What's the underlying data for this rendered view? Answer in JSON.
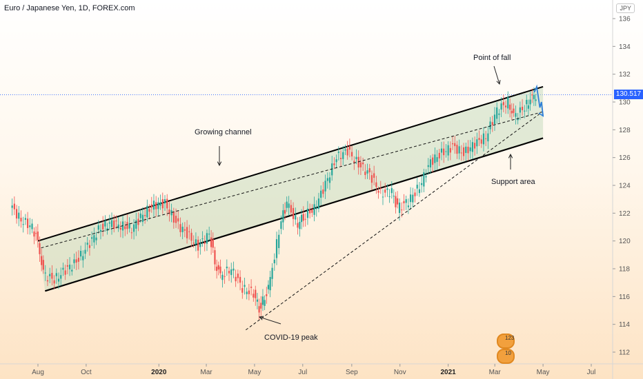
{
  "header": {
    "title": "Euro / Japanese Yen, 1D, FOREX.com",
    "currency": "JPY",
    "last_price": "130.517"
  },
  "annotations": {
    "growing_channel": "Growing channel",
    "point_of_fall": "Point of fall",
    "support_area": "Support area",
    "covid_peak": "COVID-19 peak"
  },
  "badges": {
    "top": "123",
    "bottom": "10"
  },
  "colors": {
    "up": "#26a69a",
    "down": "#ef5350",
    "channel_fill": "#c9dcc0",
    "forecast": "#2f7fd8",
    "price_line": "#2962ff"
  },
  "chart_data": {
    "type": "line",
    "title": "Euro / Japanese Yen, 1D, FOREX.com",
    "ylim": [
      111,
      137
    ],
    "y_ticks": [
      112,
      114,
      116,
      118,
      120,
      122,
      124,
      126,
      128,
      130,
      132,
      134,
      136
    ],
    "x_ticks": [
      "Aug",
      "Oct",
      "2020",
      "Mar",
      "May",
      "Jul",
      "Sep",
      "Nov",
      "2021",
      "Mar",
      "May",
      "Jul"
    ],
    "last_price": 130.517,
    "series": [
      {
        "name": "",
        "x": [
          "2019-06-28",
          "2019-07-12",
          "2019-07-26",
          "2019-08-02",
          "2019-08-09",
          "2019-08-23",
          "2019-09-06",
          "2019-09-20",
          "2019-10-04",
          "2019-10-18",
          "2019-11-01",
          "2019-11-15",
          "2019-11-29",
          "2019-12-13",
          "2019-12-27",
          "2020-01-10",
          "2020-01-24",
          "2020-02-07",
          "2020-02-21",
          "2020-03-06",
          "2020-03-13",
          "2020-03-20",
          "2020-04-03",
          "2020-04-17",
          "2020-05-01",
          "2020-05-08",
          "2020-05-15",
          "2020-05-22",
          "2020-06-05",
          "2020-06-12",
          "2020-06-26",
          "2020-07-03",
          "2020-07-17",
          "2020-07-31",
          "2020-08-14",
          "2020-08-28",
          "2020-09-11",
          "2020-09-25",
          "2020-10-09",
          "2020-10-23",
          "2020-10-30",
          "2020-11-13",
          "2020-11-27",
          "2020-12-11",
          "2020-12-25",
          "2021-01-08",
          "2021-01-22",
          "2021-02-05",
          "2021-02-19",
          "2021-03-05",
          "2021-03-19",
          "2021-03-26",
          "2021-04-09",
          "2021-04-16",
          "2021-04-23"
        ],
        "values": [
          122.6,
          121.5,
          121.0,
          120.0,
          117.6,
          117.2,
          117.9,
          118.5,
          119.6,
          120.8,
          121.3,
          121.1,
          120.9,
          121.9,
          122.6,
          122.7,
          121.3,
          120.5,
          119.6,
          120.5,
          118.5,
          117.5,
          118.0,
          116.6,
          116.2,
          115.2,
          115.9,
          117.2,
          121.5,
          122.7,
          121.2,
          121.8,
          122.3,
          124.1,
          126.0,
          126.5,
          125.5,
          124.8,
          123.4,
          123.6,
          122.3,
          122.9,
          123.9,
          125.7,
          126.3,
          126.8,
          126.3,
          127.0,
          127.5,
          129.4,
          130.0,
          128.9,
          129.6,
          130.2,
          130.5
        ]
      }
    ],
    "channel": {
      "upper_line": [
        {
          "x": "2019-08-01",
          "y": 120.0
        },
        {
          "x": "2021-05-01",
          "y": 131.1
        }
      ],
      "lower_line": [
        {
          "x": "2019-08-10",
          "y": 116.4
        },
        {
          "x": "2021-05-01",
          "y": 127.4
        }
      ]
    },
    "trendlines": [
      {
        "x1": "2019-08-05",
        "y1": 119.5,
        "x2": "2021-05-01",
        "y2": 129.3
      },
      {
        "x1": "2020-04-20",
        "y1": 113.6,
        "x2": "2021-04-28",
        "y2": 129.2
      }
    ],
    "forecast": [
      {
        "x": "2021-04-20",
        "y": 130.7
      },
      {
        "x": "2021-04-23",
        "y": 131.1
      },
      {
        "x": "2021-04-27",
        "y": 129.6
      },
      {
        "x": "2021-04-29",
        "y": 130.0
      },
      {
        "x": "2021-05-01",
        "y": 129.0
      }
    ]
  }
}
